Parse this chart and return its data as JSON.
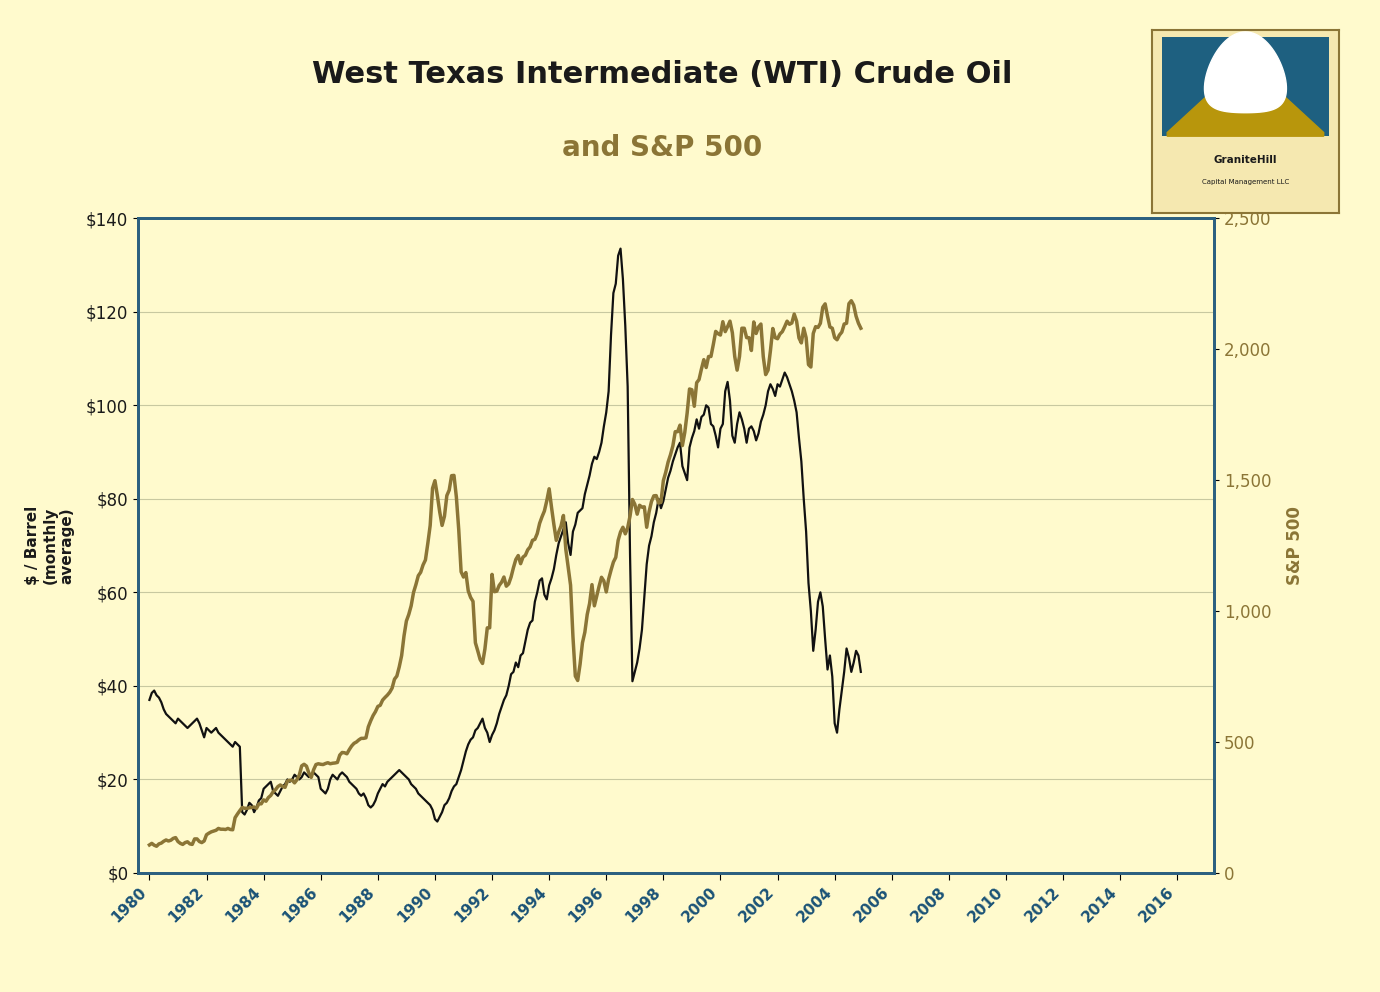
{
  "title_line1": "West Texas Intermediate (WTI) Crude Oil",
  "title_line2": "and S&P 500",
  "ylabel_left": "$ / Barrel\n(monthly\naverage)",
  "ylabel_right": "S&P 500",
  "background_color": "#FFFACD",
  "title_color": "#1a1a1a",
  "subtitle_color": "#8B7536",
  "left_axis_color": "#1a1a1a",
  "right_axis_color": "#8B7536",
  "wti_color": "#111111",
  "sp500_color": "#8B7536",
  "ylim_left": [
    0,
    140
  ],
  "ylim_right": [
    0,
    2500
  ],
  "yticks_left": [
    0,
    20,
    40,
    60,
    80,
    100,
    120,
    140
  ],
  "yticks_right": [
    0,
    500,
    1000,
    1500,
    2000,
    2500
  ],
  "xtick_years": [
    1980,
    1982,
    1984,
    1986,
    1988,
    1990,
    1992,
    1994,
    1996,
    1998,
    2000,
    2002,
    2004,
    2006,
    2008,
    2010,
    2012,
    2014,
    2016
  ],
  "wti_data": [
    37.0,
    38.5,
    39.0,
    38.0,
    37.5,
    36.5,
    35.0,
    34.0,
    33.5,
    33.0,
    32.5,
    32.0,
    33.0,
    32.5,
    32.0,
    31.5,
    31.0,
    31.5,
    32.0,
    32.5,
    33.0,
    32.0,
    30.5,
    29.0,
    31.0,
    30.5,
    30.0,
    30.5,
    31.0,
    30.0,
    29.5,
    29.0,
    28.5,
    28.0,
    27.5,
    27.0,
    28.0,
    27.5,
    27.0,
    13.0,
    12.5,
    13.5,
    15.0,
    14.5,
    13.0,
    14.0,
    15.5,
    16.0,
    18.0,
    18.5,
    19.0,
    19.5,
    17.5,
    17.0,
    16.5,
    17.5,
    18.5,
    19.0,
    20.0,
    19.5,
    20.0,
    21.0,
    20.5,
    20.0,
    20.5,
    21.5,
    21.0,
    20.5,
    21.0,
    21.5,
    21.0,
    20.5,
    18.0,
    17.5,
    17.0,
    18.0,
    20.0,
    21.0,
    20.5,
    20.0,
    21.0,
    21.5,
    21.0,
    20.5,
    19.5,
    19.0,
    18.5,
    18.0,
    17.0,
    16.5,
    17.0,
    16.0,
    14.5,
    14.0,
    14.5,
    15.5,
    17.0,
    18.0,
    19.0,
    18.5,
    19.5,
    20.0,
    20.5,
    21.0,
    21.5,
    22.0,
    21.5,
    21.0,
    20.5,
    20.0,
    19.0,
    18.5,
    18.0,
    17.0,
    16.5,
    16.0,
    15.5,
    15.0,
    14.5,
    13.5,
    11.5,
    11.0,
    12.0,
    13.0,
    14.5,
    15.0,
    16.0,
    17.5,
    18.5,
    19.0,
    20.5,
    22.0,
    24.0,
    26.0,
    27.5,
    28.5,
    29.0,
    30.5,
    31.0,
    32.0,
    33.0,
    31.0,
    30.0,
    28.0,
    29.5,
    30.5,
    32.0,
    34.0,
    35.5,
    37.0,
    38.0,
    40.0,
    42.5,
    43.0,
    45.0,
    44.0,
    46.5,
    47.0,
    49.5,
    52.0,
    53.5,
    54.0,
    58.0,
    60.0,
    62.5,
    63.0,
    59.5,
    58.5,
    61.5,
    63.0,
    65.0,
    68.0,
    70.5,
    72.0,
    73.5,
    75.0,
    70.5,
    68.0,
    73.0,
    74.5,
    77.0,
    77.5,
    78.0,
    81.0,
    83.0,
    85.0,
    87.5,
    89.0,
    88.5,
    90.0,
    92.0,
    95.5,
    98.5,
    103.0,
    115.0,
    124.0,
    126.0,
    132.0,
    133.5,
    127.0,
    117.0,
    104.0,
    68.0,
    41.0,
    43.0,
    45.0,
    48.0,
    52.0,
    59.0,
    66.0,
    70.0,
    72.0,
    75.0,
    77.0,
    80.0,
    78.0,
    79.5,
    82.0,
    84.5,
    86.0,
    88.0,
    89.5,
    91.0,
    92.0,
    87.0,
    85.5,
    84.0,
    91.0,
    93.0,
    94.5,
    97.0,
    95.0,
    97.5,
    98.0,
    100.0,
    99.5,
    96.0,
    95.5,
    93.5,
    91.0,
    95.0,
    96.0,
    103.0,
    105.0,
    101.0,
    93.5,
    92.0,
    96.0,
    98.5,
    97.0,
    95.0,
    92.0,
    95.0,
    95.5,
    94.5,
    92.5,
    94.0,
    96.5,
    98.0,
    100.0,
    103.0,
    104.5,
    103.5,
    102.0,
    104.5,
    104.0,
    105.5,
    107.0,
    106.0,
    104.5,
    103.0,
    101.0,
    98.5,
    93.0,
    88.0,
    80.0,
    73.0,
    62.0,
    56.0,
    47.5,
    52.0,
    58.0,
    60.0,
    57.0,
    50.0,
    43.5,
    46.5,
    42.0,
    32.0,
    30.0,
    35.0,
    39.0,
    43.0,
    48.0,
    46.0,
    43.0,
    45.0,
    47.5,
    46.5,
    43.0
  ],
  "sp500_data": [
    107,
    113,
    106,
    102,
    111,
    114,
    121,
    126,
    122,
    125,
    132,
    135,
    120,
    113,
    109,
    116,
    119,
    111,
    109,
    130,
    130,
    120,
    116,
    122,
    146,
    152,
    157,
    160,
    163,
    170,
    167,
    167,
    166,
    170,
    166,
    165,
    211,
    225,
    238,
    250,
    247,
    247,
    249,
    250,
    252,
    247,
    264,
    264,
    279,
    274,
    288,
    296,
    310,
    318,
    330,
    336,
    330,
    327,
    351,
    354,
    354,
    344,
    356,
    374,
    409,
    415,
    408,
    382,
    365,
    394,
    414,
    417,
    415,
    414,
    418,
    421,
    417,
    419,
    420,
    422,
    450,
    460,
    459,
    455,
    471,
    485,
    495,
    500,
    508,
    514,
    514,
    516,
    558,
    581,
    601,
    616,
    636,
    640,
    660,
    670,
    679,
    690,
    706,
    740,
    752,
    787,
    830,
    905,
    962,
    987,
    1020,
    1071,
    1101,
    1135,
    1148,
    1176,
    1195,
    1258,
    1327,
    1469,
    1498,
    1442,
    1379,
    1327,
    1362,
    1441,
    1462,
    1517,
    1518,
    1436,
    1311,
    1150,
    1130,
    1147,
    1077,
    1052,
    1037,
    879,
    848,
    815,
    800,
    855,
    936,
    936,
    1140,
    1074,
    1076,
    1098,
    1110,
    1130,
    1095,
    1104,
    1130,
    1166,
    1197,
    1212,
    1181,
    1206,
    1213,
    1234,
    1245,
    1270,
    1274,
    1296,
    1335,
    1360,
    1382,
    1421,
    1467,
    1396,
    1330,
    1270,
    1302,
    1325,
    1365,
    1236,
    1168,
    1099,
    903,
    752,
    735,
    797,
    879,
    919,
    987,
    1029,
    1101,
    1020,
    1057,
    1095,
    1129,
    1115,
    1073,
    1122,
    1156,
    1187,
    1205,
    1270,
    1302,
    1320,
    1295,
    1318,
    1363,
    1426,
    1408,
    1370,
    1404,
    1397,
    1398,
    1320,
    1379,
    1418,
    1440,
    1441,
    1412,
    1416,
    1498,
    1530,
    1569,
    1597,
    1631,
    1685,
    1685,
    1710,
    1632,
    1682,
    1756,
    1848,
    1845,
    1782,
    1872,
    1884,
    1924,
    1960,
    1930,
    1972,
    1972,
    2018,
    2068,
    2059,
    2054,
    2105,
    2067,
    2086,
    2107,
    2063,
    1972,
    1920,
    1972,
    2080,
    2080,
    2044,
    2044,
    1995,
    2104,
    2060,
    2085,
    2096,
    1971,
    1903,
    1920,
    1994,
    2079,
    2044,
    2040,
    2058,
    2067,
    2086,
    2107,
    2095,
    2100,
    2134,
    2107,
    2043,
    2024,
    2080,
    2044,
    1941,
    1932,
    2060,
    2086,
    2083,
    2099,
    2160,
    2173,
    2126,
    2085,
    2080,
    2044,
    2036,
    2054,
    2065,
    2096,
    2099,
    2174,
    2185,
    2168,
    2126,
    2099,
    2080
  ]
}
